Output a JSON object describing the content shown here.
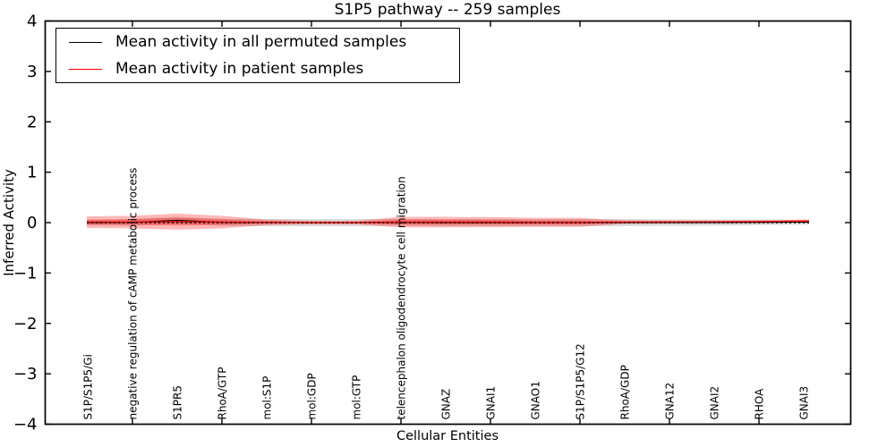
{
  "chart_data": {
    "type": "line",
    "title": "S1P5 pathway -- 259 samples",
    "xlabel": "Cellular Entities",
    "ylabel": "Inferred Activity",
    "ylim": [
      -4,
      4
    ],
    "ytick_labels": [
      "4",
      "3",
      "2",
      "1",
      "0",
      "−1",
      "−2",
      "−3",
      "−4"
    ],
    "grid": false,
    "categories": [
      "S1P/S1P5/Gi",
      "negative regulation of cAMP metabolic process",
      "S1PR5",
      "RhoA/GTP",
      "mol:S1P",
      "mol:GDP",
      "mol:GTP",
      "telencephalon oligodendrocyte cell migration",
      "GNAZ",
      "GNAI1",
      "GNAO1",
      "S1P/S1P5/G12",
      "RhoA/GDP",
      "GNA12",
      "GNAI2",
      "RHOA",
      "GNAI3"
    ],
    "legend": {
      "position": "upper left",
      "entries": [
        {
          "label": "Mean activity in all permuted samples",
          "color": "#000000"
        },
        {
          "label": "Mean activity in patient samples",
          "color": "#ff0000"
        }
      ]
    },
    "series": [
      {
        "name": "Mean activity in all permuted samples",
        "color": "#000000",
        "values": [
          0,
          0.005,
          0.045,
          0.005,
          0,
          0,
          0,
          0.005,
          0,
          0,
          0,
          0,
          0,
          0,
          0,
          0.005,
          0.01
        ]
      },
      {
        "name": "Mean activity in patient samples",
        "color": "#ff0000",
        "values": [
          0.01,
          0.01,
          0.02,
          0.01,
          0.005,
          0,
          0,
          0.01,
          0.01,
          0.01,
          0.005,
          0.005,
          0.01,
          0.012,
          0.015,
          0.02,
          0.03
        ]
      }
    ],
    "bands": [
      {
        "name": "permuted-std-band",
        "center": "permuted",
        "color": "#9e9e9e",
        "opacity": 0.38,
        "halfwidths": [
          0.05,
          0.07,
          0.07,
          0.07,
          0.07,
          0.07,
          0.07,
          0.07,
          0.07,
          0.07,
          0.07,
          0.07,
          0.07,
          0.065,
          0.06,
          0.055,
          0.05
        ]
      },
      {
        "name": "patient-outer-band",
        "center": "patient",
        "color": "#ff0000",
        "opacity": 0.28,
        "halfwidths": [
          0.115,
          0.125,
          0.16,
          0.125,
          0.055,
          0.035,
          0.035,
          0.105,
          0.105,
          0.1,
          0.09,
          0.09,
          0.035,
          0.027,
          0.027,
          0.027,
          0.027
        ]
      },
      {
        "name": "patient-inner-band",
        "center": "patient",
        "color": "#ff0000",
        "opacity": 0.32,
        "halfwidths": [
          0.05,
          0.055,
          0.075,
          0.055,
          0.025,
          0.015,
          0.015,
          0.05,
          0.048,
          0.045,
          0.04,
          0.04,
          0.016,
          0.012,
          0.012,
          0.012,
          0.012
        ]
      }
    ],
    "zero_line": {
      "value": 0,
      "style": "dotted",
      "color": "#000000"
    }
  }
}
